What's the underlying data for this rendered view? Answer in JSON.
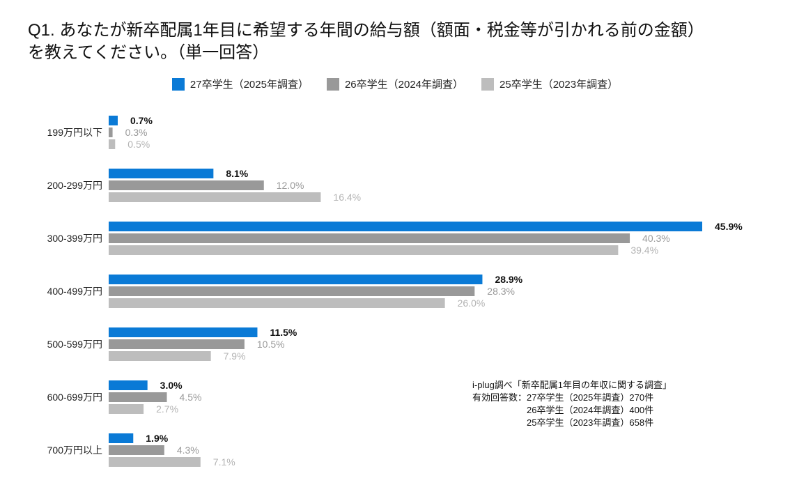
{
  "title_line1": "Q1. あなたが新卒配属1年目に希望する年間の給与額（額面・税金等が引かれる前の金額）",
  "title_line2": "を教えてください。（単一回答）",
  "legend": [
    {
      "label": "27卒学生（2025年調査）",
      "color": "#0a7ad6"
    },
    {
      "label": "26卒学生（2024年調査）",
      "color": "#999999"
    },
    {
      "label": "25卒学生（2023年調査）",
      "color": "#bdbdbd"
    }
  ],
  "note": {
    "line1": "i-plug調べ「新卒配属1年目の年収に関する調査」",
    "line2": "有効回答数：27卒学生（2025年調査）270件",
    "line3": "　　　　　　26卒学生（2024年調査）400件",
    "line4": "　　　　　　25卒学生（2023年調査）658件"
  },
  "chart_data": {
    "type": "bar",
    "orientation": "horizontal",
    "categories": [
      "199万円以下",
      "200-299万円",
      "300-399万円",
      "400-499万円",
      "500-599万円",
      "600-699万円",
      "700万円以上"
    ],
    "series": [
      {
        "name": "27卒学生（2025年調査）",
        "color": "#0a7ad6",
        "label_color": "#111111",
        "bold": true,
        "values": [
          0.7,
          8.1,
          45.9,
          28.9,
          11.5,
          3.0,
          1.9
        ],
        "labels": [
          "0.7%",
          "8.1%",
          "45.9%",
          "28.9%",
          "11.5%",
          "3.0%",
          "1.9%"
        ]
      },
      {
        "name": "26卒学生（2024年調査）",
        "color": "#999999",
        "label_color": "#999999",
        "bold": false,
        "values": [
          0.3,
          12.0,
          40.3,
          28.3,
          10.5,
          4.5,
          4.3
        ],
        "labels": [
          "0.3%",
          "12.0%",
          "40.3%",
          "28.3%",
          "10.5%",
          "4.5%",
          "4.3%"
        ]
      },
      {
        "name": "25卒学生（2023年調査）",
        "color": "#bdbdbd",
        "label_color": "#b3b3b3",
        "bold": false,
        "values": [
          0.5,
          16.4,
          39.4,
          26.0,
          7.9,
          2.7,
          7.1
        ],
        "labels": [
          "0.5%",
          "16.4%",
          "39.4%",
          "26.0%",
          "7.9%",
          "2.7%",
          "7.1%"
        ]
      }
    ],
    "xlim": [
      0,
      45.9
    ],
    "grid": false,
    "legend_position": "top-center"
  }
}
